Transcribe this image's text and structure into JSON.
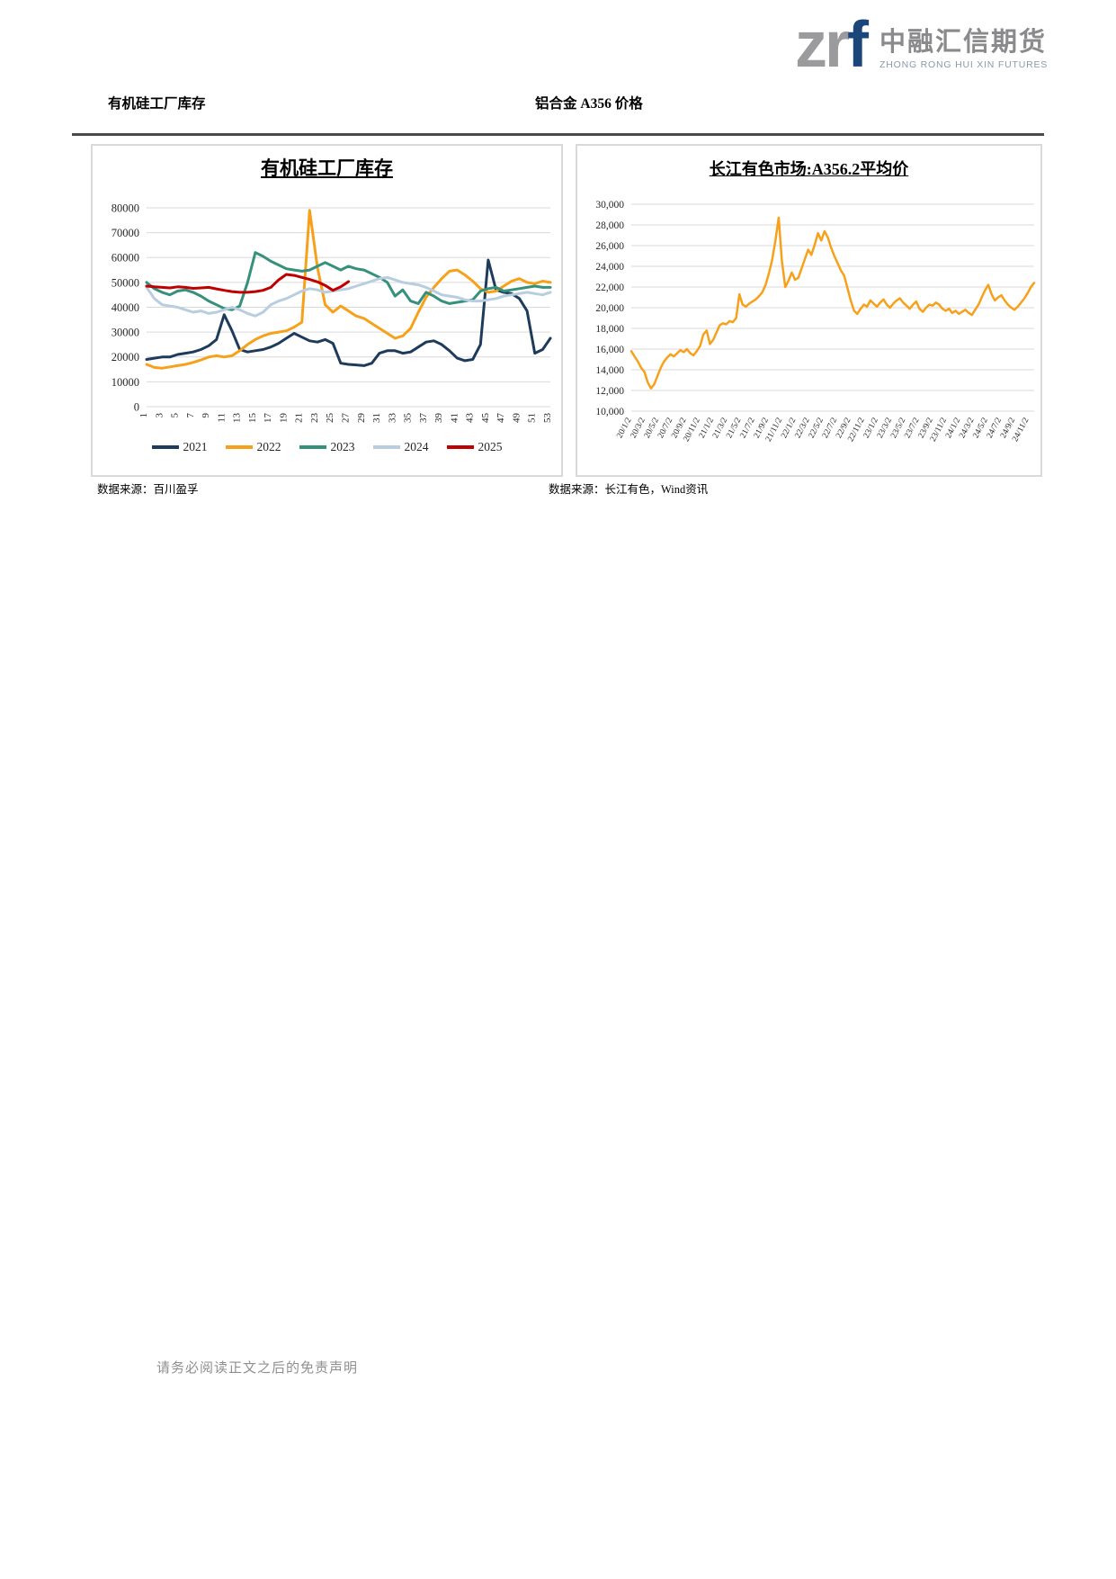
{
  "logo": {
    "mark_gray": "zr",
    "mark_blue": "f",
    "company_cn": "中融汇信期货",
    "company_en": "ZHONG RONG HUI XIN FUTURES"
  },
  "header": {
    "left_title": "有机硅工厂库存",
    "right_title": "铝合金 A356 价格"
  },
  "sources": {
    "left": "数据来源：百川盈孚",
    "right": "数据来源：长江有色，Wind资讯"
  },
  "footer": {
    "disclaimer": "请务必阅读正文之后的免责声明"
  },
  "colors": {
    "grid": "#D9D9D9",
    "panel_border": "#D9D9D9",
    "header_rule": "#4A4A4A",
    "axis_text": "#262626",
    "logo_gray": "#9B9B9D",
    "logo_blue": "#1B4679"
  },
  "chart_data": [
    {
      "type": "line",
      "title": "有机硅工厂库存",
      "x_count": 53,
      "ylim": [
        0,
        80000
      ],
      "grid": true,
      "legend_position": "bottom",
      "yticks": [
        {
          "v": 0,
          "label": "0"
        },
        {
          "v": 10000,
          "label": "10000"
        },
        {
          "v": 20000,
          "label": "20000"
        },
        {
          "v": 30000,
          "label": "30000"
        },
        {
          "v": 40000,
          "label": "40000"
        },
        {
          "v": 50000,
          "label": "50000"
        },
        {
          "v": 60000,
          "label": "60000"
        },
        {
          "v": 70000,
          "label": "70000"
        },
        {
          "v": 80000,
          "label": "80000"
        }
      ],
      "xticks": [
        "1",
        "3",
        "5",
        "7",
        "9",
        "11",
        "13",
        "15",
        "17",
        "19",
        "21",
        "23",
        "25",
        "27",
        "29",
        "31",
        "33",
        "35",
        "37",
        "39",
        "41",
        "43",
        "45",
        "47",
        "49",
        "51",
        "53"
      ],
      "xtick_frac_step": 0.0384615,
      "xtick_rotate": -90,
      "series": [
        {
          "name": "2021",
          "color": "#1F3B5C",
          "values": [
            19000,
            19500,
            20000,
            20000,
            21000,
            21500,
            22000,
            23000,
            24500,
            27000,
            37000,
            30500,
            23000,
            22000,
            22500,
            23000,
            24000,
            25500,
            27500,
            29500,
            28000,
            26500,
            26000,
            27000,
            25500,
            17500,
            17000,
            16800,
            16500,
            17500,
            21500,
            22500,
            22500,
            21500,
            22000,
            24000,
            26000,
            26500,
            25000,
            22500,
            19500,
            18500,
            19000,
            25000,
            59000,
            47000,
            46000,
            45500,
            43500,
            38500,
            21500,
            23000,
            27500
          ]
        },
        {
          "name": "2022",
          "color": "#F7A11A",
          "values": [
            17000,
            15800,
            15500,
            16000,
            16500,
            17000,
            17800,
            18800,
            20000,
            20500,
            20000,
            20500,
            22500,
            25000,
            27000,
            28500,
            29500,
            30000,
            30500,
            32000,
            34000,
            79000,
            56000,
            41000,
            38000,
            40500,
            38500,
            36500,
            35500,
            33500,
            31500,
            29500,
            27500,
            28500,
            31500,
            38000,
            44000,
            48000,
            51500,
            54500,
            55000,
            53000,
            50500,
            47500,
            46000,
            46500,
            48500,
            50500,
            51500,
            50000,
            49500,
            50500,
            50000
          ]
        },
        {
          "name": "2023",
          "color": "#35907C",
          "values": [
            50000,
            47500,
            46000,
            45000,
            46500,
            47000,
            46000,
            44500,
            42500,
            41000,
            39500,
            39000,
            40500,
            50000,
            62000,
            60500,
            58500,
            57000,
            55500,
            55000,
            54500,
            55000,
            56500,
            58000,
            56500,
            55000,
            56500,
            55500,
            55000,
            53500,
            52000,
            50000,
            44500,
            47000,
            42500,
            41500,
            46000,
            44500,
            42500,
            41500,
            42000,
            42500,
            43000,
            46500,
            47500,
            48000,
            46500,
            47000,
            47500,
            48000,
            48500,
            48000,
            48000
          ]
        },
        {
          "name": "2024",
          "color": "#B9CDE0",
          "values": [
            48000,
            43500,
            41000,
            40500,
            40000,
            39000,
            38000,
            38500,
            37500,
            38000,
            39000,
            40000,
            39000,
            37500,
            36500,
            38000,
            41000,
            42500,
            43500,
            45000,
            46500,
            47500,
            47000,
            46000,
            46500,
            47000,
            47500,
            48500,
            49500,
            50500,
            51500,
            52000,
            51000,
            50000,
            49500,
            49000,
            48000,
            46500,
            45000,
            44500,
            44000,
            43000,
            42500,
            42500,
            43000,
            43500,
            44500,
            45000,
            45500,
            46000,
            45500,
            45000,
            46000
          ]
        },
        {
          "name": "2025",
          "color": "#C00000",
          "values": [
            48500,
            48200,
            48000,
            47800,
            48200,
            48000,
            47600,
            47800,
            48000,
            47400,
            46800,
            46300,
            46000,
            46000,
            46300,
            46800,
            48000,
            51000,
            53200,
            52800,
            52000,
            51200,
            50200,
            48800,
            46800,
            48200,
            50300
          ]
        }
      ]
    },
    {
      "type": "line",
      "title": "长江有色市场:A356.2平均价",
      "x_count": 124,
      "ylim": [
        10000,
        30000
      ],
      "grid": true,
      "legend_position": "none",
      "yticks": [
        {
          "v": 10000,
          "label": "10,000"
        },
        {
          "v": 12000,
          "label": "12,000"
        },
        {
          "v": 14000,
          "label": "14,000"
        },
        {
          "v": 16000,
          "label": "16,000"
        },
        {
          "v": 18000,
          "label": "18,000"
        },
        {
          "v": 20000,
          "label": "20,000"
        },
        {
          "v": 22000,
          "label": "22,000"
        },
        {
          "v": 24000,
          "label": "24,000"
        },
        {
          "v": 26000,
          "label": "26,000"
        },
        {
          "v": 28000,
          "label": "28,000"
        },
        {
          "v": 30000,
          "label": "30,000"
        }
      ],
      "xticks": [
        "20/1/2",
        "20/3/2",
        "20/5/2",
        "20/7/2",
        "20/9/2",
        "20/11/2",
        "21/1/2",
        "21/3/2",
        "21/5/2",
        "21/7/2",
        "21/9/2",
        "21/11/2",
        "22/1/2",
        "22/3/2",
        "22/5/2",
        "22/7/2",
        "22/9/2",
        "22/11/2",
        "23/1/2",
        "23/3/2",
        "23/5/2",
        "23/7/2",
        "23/9/2",
        "23/11/2",
        "24/1/2",
        "24/3/2",
        "24/5/2",
        "24/7/2",
        "24/9/2",
        "24/11/2"
      ],
      "xtick_frac_step": 0.034014,
      "xtick_rotate": -62,
      "series": [
        {
          "name": "长江有色市场:A356.2平均价",
          "color": "#F7A11A",
          "values": [
            15800,
            15300,
            14800,
            14200,
            13800,
            12800,
            12200,
            12600,
            13400,
            14200,
            14800,
            15200,
            15500,
            15300,
            15600,
            15900,
            15700,
            16000,
            15600,
            15400,
            15800,
            16300,
            17400,
            17800,
            16500,
            16900,
            17600,
            18300,
            18500,
            18400,
            18700,
            18600,
            19000,
            21300,
            20300,
            20100,
            20400,
            20600,
            20800,
            21100,
            21500,
            22200,
            23300,
            24600,
            26500,
            28700,
            24500,
            22000,
            22600,
            23400,
            22700,
            22900,
            23800,
            24700,
            25600,
            25100,
            26100,
            27200,
            26500,
            27400,
            26800,
            25800,
            25000,
            24300,
            23600,
            23100,
            21900,
            20700,
            19700,
            19400,
            19900,
            20300,
            20100,
            20700,
            20400,
            20100,
            20500,
            20800,
            20300,
            20000,
            20400,
            20700,
            20900,
            20500,
            20200,
            19900,
            20300,
            20600,
            19900,
            19600,
            20000,
            20300,
            20200,
            20500,
            20300,
            19900,
            19700,
            19900,
            19500,
            19700,
            19400,
            19600,
            19800,
            19500,
            19300,
            19800,
            20300,
            21000,
            21700,
            22200,
            21300,
            20700,
            21000,
            21200,
            20700,
            20300,
            20000,
            19800,
            20100,
            20500,
            20900,
            21400,
            22000,
            22400
          ]
        }
      ]
    }
  ]
}
